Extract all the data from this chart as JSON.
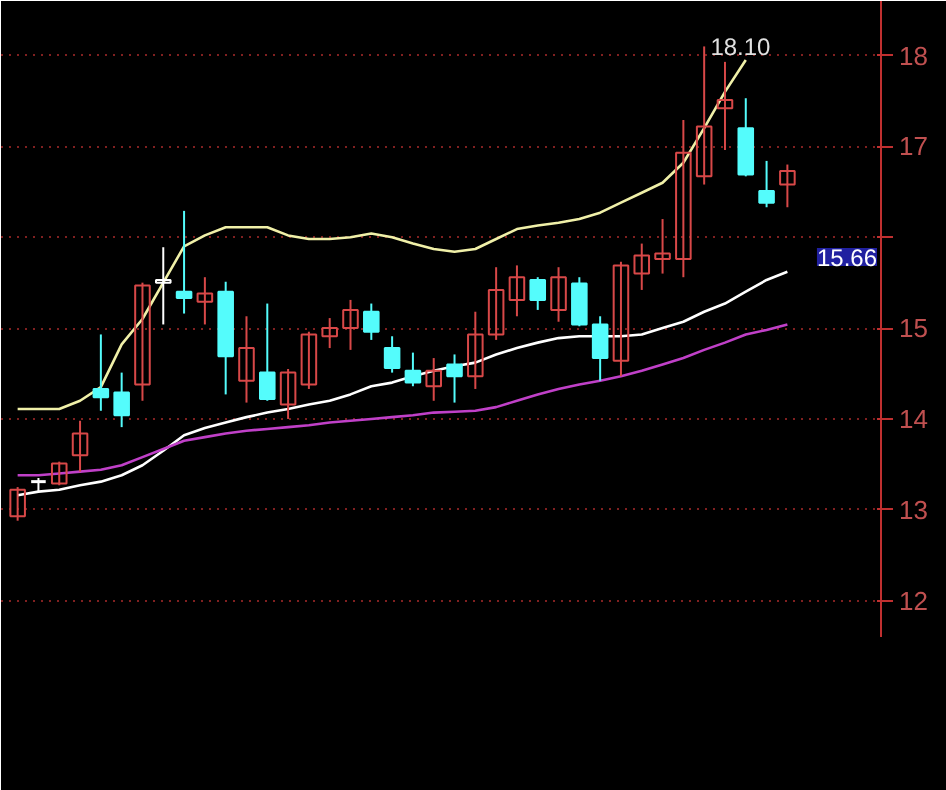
{
  "chart_data": {
    "type": "candlestick",
    "categories": [
      null,
      null,
      null,
      null,
      null,
      null,
      null,
      null,
      null,
      null,
      null,
      null,
      null,
      null,
      null,
      null,
      null,
      null,
      null,
      null,
      null,
      null,
      null,
      null,
      null,
      null,
      null,
      null,
      null,
      null,
      null,
      null,
      null,
      null,
      null,
      null,
      null,
      null
    ],
    "ohlc": [
      [
        12.93,
        13.25,
        12.88,
        13.22
      ],
      [
        13.3,
        13.35,
        13.2,
        13.31
      ],
      [
        13.29,
        13.53,
        13.27,
        13.51
      ],
      [
        13.6,
        13.98,
        13.42,
        13.84
      ],
      [
        14.33,
        14.93,
        14.09,
        14.24
      ],
      [
        14.29,
        14.51,
        13.91,
        14.04
      ],
      [
        14.38,
        15.5,
        14.2,
        15.47
      ],
      [
        15.5,
        15.89,
        15.04,
        15.53
      ],
      [
        15.4,
        16.29,
        15.16,
        15.33
      ],
      [
        15.29,
        15.56,
        15.04,
        15.38
      ],
      [
        15.4,
        15.51,
        14.27,
        14.69
      ],
      [
        14.42,
        15.13,
        14.18,
        14.78
      ],
      [
        14.51,
        15.27,
        14.2,
        14.22
      ],
      [
        14.16,
        14.55,
        14.0,
        14.51
      ],
      [
        14.38,
        14.96,
        14.33,
        14.93
      ],
      [
        14.91,
        15.11,
        14.78,
        15.0
      ],
      [
        15.0,
        15.31,
        14.76,
        15.2
      ],
      [
        15.18,
        15.27,
        14.87,
        14.96
      ],
      [
        14.78,
        14.91,
        14.51,
        14.56
      ],
      [
        14.53,
        14.73,
        14.36,
        14.4
      ],
      [
        14.36,
        14.67,
        14.2,
        14.53
      ],
      [
        14.6,
        14.71,
        14.18,
        14.47
      ],
      [
        14.47,
        15.18,
        14.33,
        14.93
      ],
      [
        14.93,
        15.67,
        14.87,
        15.42
      ],
      [
        15.31,
        15.69,
        15.13,
        15.56
      ],
      [
        15.53,
        15.56,
        15.2,
        15.31
      ],
      [
        15.2,
        15.67,
        15.07,
        15.56
      ],
      [
        15.49,
        15.56,
        15.02,
        15.04
      ],
      [
        15.04,
        15.13,
        14.42,
        14.67
      ],
      [
        14.64,
        15.73,
        14.47,
        15.69
      ],
      [
        15.6,
        15.93,
        15.42,
        15.8
      ],
      [
        15.76,
        16.2,
        15.6,
        15.82
      ],
      [
        15.76,
        17.29,
        15.56,
        16.93
      ],
      [
        16.67,
        18.1,
        16.58,
        17.22
      ],
      [
        17.42,
        17.93,
        16.96,
        17.51
      ],
      [
        17.2,
        17.53,
        16.67,
        16.69
      ],
      [
        16.51,
        16.84,
        16.33,
        16.38
      ],
      [
        16.58,
        16.8,
        16.33,
        16.73
      ]
    ],
    "colors": [
      "#d84848",
      "#ffffff",
      "#d84848",
      "#d84848",
      "#54fcfc",
      "#54fcfc",
      "#d84848",
      "#ffffff",
      "#54fcfc",
      "#d84848",
      "#54fcfc",
      "#d84848",
      "#54fcfc",
      "#d84848",
      "#d84848",
      "#d84848",
      "#d84848",
      "#54fcfc",
      "#54fcfc",
      "#54fcfc",
      "#d84848",
      "#54fcfc",
      "#d84848",
      "#d84848",
      "#d84848",
      "#54fcfc",
      "#d84848",
      "#54fcfc",
      "#54fcfc",
      "#d84848",
      "#d84848",
      "#d84848",
      "#d84848",
      "#d84848",
      "#d84848",
      "#54fcfc",
      "#54fcfc",
      "#d84848"
    ],
    "series": [
      {
        "type": "line",
        "color": "#f0f0a8",
        "values": [
          14.11,
          14.11,
          14.11,
          14.2,
          14.35,
          14.82,
          15.1,
          15.5,
          15.9,
          16.02,
          16.11,
          16.11,
          16.11,
          16.02,
          15.98,
          15.98,
          16.0,
          16.04,
          16.0,
          15.93,
          15.87,
          15.84,
          15.87,
          15.98,
          16.09,
          16.13,
          16.16,
          16.2,
          16.27,
          16.38,
          16.49,
          16.6,
          16.82,
          17.2,
          17.6,
          17.95,
          null,
          null
        ]
      },
      {
        "type": "line",
        "color": "#ffffff",
        "values": [
          13.16,
          13.2,
          13.22,
          13.27,
          13.31,
          13.38,
          13.49,
          13.65,
          13.82,
          13.9,
          13.96,
          14.02,
          14.07,
          14.11,
          14.16,
          14.2,
          14.27,
          14.36,
          14.4,
          14.47,
          14.53,
          14.58,
          14.62,
          14.71,
          14.78,
          14.84,
          14.89,
          14.91,
          14.91,
          14.91,
          14.93,
          15.0,
          15.07,
          15.18,
          15.27,
          15.4,
          15.53,
          15.62
        ]
      },
      {
        "type": "line",
        "color": "#c040c8",
        "values": [
          13.38,
          13.38,
          13.4,
          13.42,
          13.44,
          13.49,
          13.58,
          13.67,
          13.76,
          13.8,
          13.84,
          13.87,
          13.89,
          13.91,
          13.93,
          13.96,
          13.98,
          14.0,
          14.02,
          14.04,
          14.07,
          14.08,
          14.09,
          14.13,
          14.2,
          14.27,
          14.33,
          14.38,
          14.42,
          14.47,
          14.53,
          14.6,
          14.67,
          14.76,
          14.84,
          14.93,
          14.98,
          15.04
        ]
      }
    ],
    "ylim": [
      11.6,
      18.6
    ],
    "yticks": [
      12,
      13,
      14,
      15,
      {
        "value": 16,
        "label": null
      },
      17,
      18
    ],
    "grid": "y",
    "tick_labels": "y",
    "annotations": [
      "18.10",
      "15.66"
    ]
  }
}
